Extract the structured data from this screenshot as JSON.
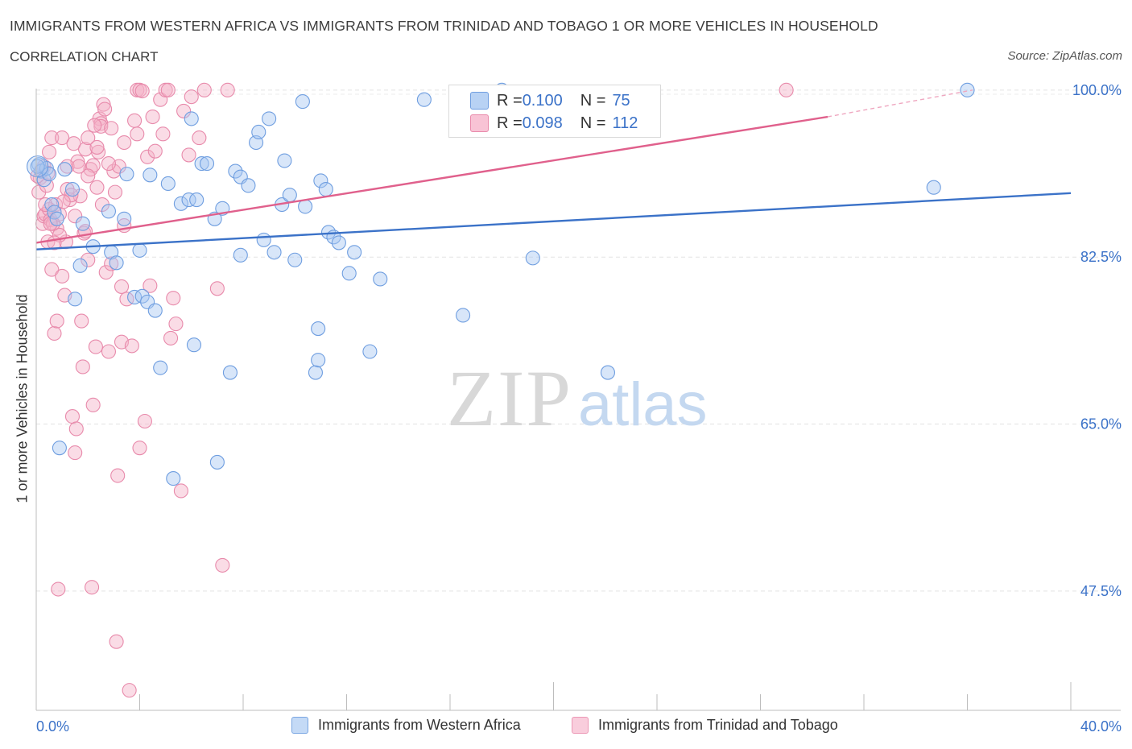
{
  "title": "IMMIGRANTS FROM WESTERN AFRICA VS IMMIGRANTS FROM TRINIDAD AND TOBAGO 1 OR MORE VEHICLES IN HOUSEHOLD",
  "subtitle": "CORRELATION CHART",
  "source": "Source: ZipAtlas.com",
  "watermark": {
    "zip": "ZIP",
    "atlas": "atlas"
  },
  "colors": {
    "blue": "#3b72c8",
    "blue_fill": "#a9c8f2",
    "pink": "#e0608c",
    "pink_fill": "#f5b1c8",
    "axis_text": "#3b72c8"
  },
  "legend": {
    "r_label": "R = ",
    "n_label": "N = ",
    "rows": [
      {
        "r": "0.100",
        "n": "75"
      },
      {
        "r": "0.098",
        "n": "112"
      }
    ]
  },
  "chart_data": {
    "type": "scatter",
    "xlabel": "",
    "ylabel": "1 or more Vehicles in Household",
    "xlim": [
      0,
      40
    ],
    "ylim": [
      35,
      101
    ],
    "x_tick_labels": [
      "0.0%",
      "40.0%"
    ],
    "y_ticks": [
      47.5,
      65.0,
      82.5,
      100.0
    ],
    "y_tick_labels": [
      "47.5%",
      "65.0%",
      "82.5%",
      "100.0%"
    ],
    "grid": true,
    "series": [
      {
        "name": "Immigrants from Western Africa",
        "R": 0.1,
        "N": 75,
        "trend": {
          "x": [
            0,
            40
          ],
          "y": [
            83.3,
            89.2
          ]
        },
        "points": [
          [
            0.1,
            92.2
          ],
          [
            0.2,
            91.5
          ],
          [
            0.3,
            90.6
          ],
          [
            0.4,
            91.8
          ],
          [
            0.5,
            91.2
          ],
          [
            0.6,
            88.0
          ],
          [
            0.7,
            87.2
          ],
          [
            0.8,
            86.5
          ],
          [
            0.9,
            62.5
          ],
          [
            1.1,
            91.7
          ],
          [
            1.4,
            89.6
          ],
          [
            1.5,
            78.1
          ],
          [
            1.7,
            81.6
          ],
          [
            1.8,
            86.0
          ],
          [
            2.2,
            83.6
          ],
          [
            2.8,
            87.3
          ],
          [
            2.9,
            83.0
          ],
          [
            3.1,
            81.9
          ],
          [
            3.4,
            86.5
          ],
          [
            3.5,
            91.2
          ],
          [
            3.8,
            78.3
          ],
          [
            4.0,
            83.2
          ],
          [
            4.1,
            78.4
          ],
          [
            4.3,
            77.8
          ],
          [
            4.4,
            91.1
          ],
          [
            4.6,
            76.9
          ],
          [
            4.8,
            70.9
          ],
          [
            5.1,
            90.2
          ],
          [
            5.3,
            59.3
          ],
          [
            5.6,
            88.1
          ],
          [
            5.9,
            88.5
          ],
          [
            6.0,
            97.0
          ],
          [
            6.1,
            73.3
          ],
          [
            6.2,
            88.5
          ],
          [
            6.4,
            92.3
          ],
          [
            6.6,
            92.3
          ],
          [
            6.9,
            86.5
          ],
          [
            7.0,
            61.0
          ],
          [
            7.2,
            87.6
          ],
          [
            7.5,
            70.4
          ],
          [
            7.7,
            91.5
          ],
          [
            7.9,
            90.9
          ],
          [
            7.9,
            82.7
          ],
          [
            8.2,
            90.0
          ],
          [
            8.5,
            94.5
          ],
          [
            8.6,
            95.6
          ],
          [
            8.8,
            84.3
          ],
          [
            9.0,
            97.0
          ],
          [
            9.2,
            83.0
          ],
          [
            9.5,
            88.0
          ],
          [
            9.6,
            92.6
          ],
          [
            9.8,
            89.0
          ],
          [
            10.0,
            82.2
          ],
          [
            10.4,
            87.8
          ],
          [
            10.3,
            98.8
          ],
          [
            10.8,
            70.4
          ],
          [
            10.9,
            71.7
          ],
          [
            10.9,
            75.0
          ],
          [
            11.0,
            90.5
          ],
          [
            11.2,
            89.6
          ],
          [
            11.3,
            85.1
          ],
          [
            11.5,
            84.6
          ],
          [
            11.7,
            84.0
          ],
          [
            12.1,
            80.8
          ],
          [
            12.3,
            83.0
          ],
          [
            12.9,
            72.6
          ],
          [
            13.3,
            80.2
          ],
          [
            15.0,
            99.0
          ],
          [
            16.5,
            76.4
          ],
          [
            18.0,
            100.0
          ],
          [
            19.2,
            82.4
          ],
          [
            22.1,
            70.4
          ],
          [
            34.7,
            89.8
          ],
          [
            36.0,
            100.0
          ],
          [
            0.05,
            92.0
          ]
        ]
      },
      {
        "name": "Immigrants from Trinidad and Tobago",
        "R": 0.098,
        "N": 112,
        "trend": {
          "x": [
            0,
            30.6
          ],
          "y": [
            84.0,
            97.2
          ]
        },
        "trend_dashed": {
          "x": [
            30.6,
            36.2
          ],
          "y": [
            97.2,
            100.0
          ]
        },
        "points": [
          [
            0.1,
            89.3
          ],
          [
            0.15,
            90.8
          ],
          [
            0.2,
            91.6
          ],
          [
            0.25,
            86.0
          ],
          [
            0.3,
            86.8
          ],
          [
            0.35,
            87.0
          ],
          [
            0.4,
            90.0
          ],
          [
            0.45,
            84.1
          ],
          [
            0.5,
            87.5
          ],
          [
            0.55,
            86.4
          ],
          [
            0.6,
            81.2
          ],
          [
            0.6,
            95.0
          ],
          [
            0.7,
            74.5
          ],
          [
            0.75,
            88.0
          ],
          [
            0.8,
            85.5
          ],
          [
            0.8,
            75.8
          ],
          [
            0.85,
            47.7
          ],
          [
            0.9,
            87.0
          ],
          [
            1.0,
            95.0
          ],
          [
            1.0,
            80.5
          ],
          [
            1.1,
            78.5
          ],
          [
            1.15,
            84.1
          ],
          [
            1.2,
            89.6
          ],
          [
            1.3,
            88.5
          ],
          [
            1.4,
            65.8
          ],
          [
            1.45,
            94.4
          ],
          [
            1.5,
            62.0
          ],
          [
            1.55,
            64.5
          ],
          [
            1.6,
            92.5
          ],
          [
            1.7,
            88.9
          ],
          [
            1.75,
            75.8
          ],
          [
            1.8,
            71.0
          ],
          [
            1.85,
            85.0
          ],
          [
            1.9,
            93.8
          ],
          [
            2.0,
            82.2
          ],
          [
            2.0,
            95.0
          ],
          [
            2.1,
            91.7
          ],
          [
            2.15,
            47.9
          ],
          [
            2.2,
            67.0
          ],
          [
            2.2,
            92.1
          ],
          [
            2.3,
            73.1
          ],
          [
            2.35,
            89.8
          ],
          [
            2.4,
            93.5
          ],
          [
            2.45,
            97.0
          ],
          [
            2.5,
            96.5
          ],
          [
            2.6,
            98.5
          ],
          [
            2.65,
            98.0
          ],
          [
            2.7,
            80.9
          ],
          [
            2.8,
            72.6
          ],
          [
            2.9,
            81.8
          ],
          [
            2.5,
            96.2
          ],
          [
            3.0,
            91.5
          ],
          [
            3.1,
            42.2
          ],
          [
            3.15,
            59.6
          ],
          [
            3.2,
            92.0
          ],
          [
            3.3,
            79.4
          ],
          [
            3.3,
            73.6
          ],
          [
            3.4,
            85.8
          ],
          [
            3.5,
            78.1
          ],
          [
            3.6,
            37.1
          ],
          [
            3.7,
            73.2
          ],
          [
            3.8,
            96.8
          ],
          [
            3.9,
            95.4
          ],
          [
            3.9,
            100.0
          ],
          [
            4.0,
            100.0
          ],
          [
            4.0,
            62.5
          ],
          [
            4.1,
            99.9
          ],
          [
            4.2,
            65.3
          ],
          [
            4.3,
            93.0
          ],
          [
            4.4,
            79.5
          ],
          [
            4.5,
            97.2
          ],
          [
            4.8,
            99.0
          ],
          [
            4.9,
            95.4
          ],
          [
            5.0,
            100.0
          ],
          [
            5.1,
            100.0
          ],
          [
            5.2,
            74.0
          ],
          [
            5.3,
            78.2
          ],
          [
            5.4,
            75.5
          ],
          [
            5.6,
            58.0
          ],
          [
            5.7,
            97.8
          ],
          [
            5.9,
            93.2
          ],
          [
            6.0,
            99.3
          ],
          [
            6.3,
            95.0
          ],
          [
            6.5,
            100.0
          ],
          [
            7.0,
            79.2
          ],
          [
            7.2,
            50.2
          ],
          [
            7.4,
            100.0
          ],
          [
            29.0,
            100.0
          ],
          [
            0.05,
            91.0
          ],
          [
            0.3,
            92.0
          ],
          [
            0.5,
            93.5
          ],
          [
            0.9,
            84.8
          ],
          [
            1.2,
            92.0
          ],
          [
            1.5,
            86.8
          ],
          [
            1.9,
            85.2
          ],
          [
            2.0,
            91.0
          ],
          [
            2.25,
            96.3
          ],
          [
            2.8,
            92.3
          ],
          [
            3.4,
            94.5
          ],
          [
            0.65,
            86.0
          ],
          [
            0.55,
            86.0
          ],
          [
            0.35,
            88.0
          ],
          [
            0.7,
            84.0
          ],
          [
            1.35,
            89.0
          ],
          [
            1.65,
            92.0
          ],
          [
            2.35,
            94.0
          ],
          [
            2.55,
            88.0
          ],
          [
            3.05,
            89.3
          ],
          [
            1.05,
            88.3
          ],
          [
            0.45,
            91.3
          ],
          [
            2.9,
            96.0
          ],
          [
            4.6,
            93.6
          ]
        ]
      }
    ]
  },
  "bottom_legend": [
    {
      "label": "Immigrants from Western Africa"
    },
    {
      "label": "Immigrants from Trinidad and Tobago"
    }
  ]
}
